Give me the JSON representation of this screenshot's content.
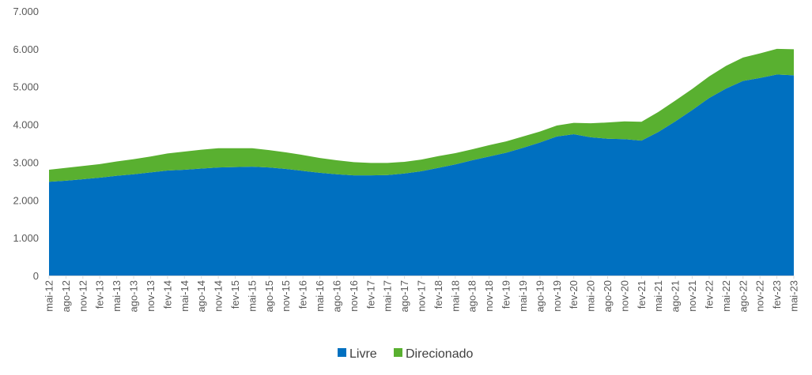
{
  "chart_data": {
    "type": "area",
    "stacked": true,
    "title": "",
    "xlabel": "",
    "ylabel": "",
    "ylim": [
      0,
      7000
    ],
    "yticks": [
      0,
      1000,
      2000,
      3000,
      4000,
      5000,
      6000,
      7000
    ],
    "ytick_labels": [
      "0",
      "1.000",
      "2.000",
      "3.000",
      "4.000",
      "5.000",
      "6.000",
      "7.000"
    ],
    "x": [
      "mai-12",
      "ago-12",
      "nov-12",
      "fev-13",
      "mai-13",
      "ago-13",
      "nov-13",
      "fev-14",
      "mai-14",
      "ago-14",
      "nov-14",
      "fev-15",
      "mai-15",
      "ago-15",
      "nov-15",
      "fev-16",
      "mai-16",
      "ago-16",
      "nov-16",
      "fev-17",
      "mai-17",
      "ago-17",
      "nov-17",
      "fev-18",
      "mai-18",
      "ago-18",
      "nov-18",
      "fev-19",
      "mai-19",
      "ago-19",
      "nov-19",
      "fev-20",
      "mai-20",
      "ago-20",
      "nov-20",
      "fev-21",
      "mai-21",
      "ago-21",
      "nov-21",
      "fev-22",
      "mai-22",
      "ago-22",
      "nov-22",
      "fev-23",
      "mai-23"
    ],
    "series": [
      {
        "name": "Livre",
        "color": "#0070c0",
        "values": [
          2480,
          2510,
          2550,
          2590,
          2640,
          2680,
          2730,
          2780,
          2800,
          2830,
          2860,
          2870,
          2880,
          2860,
          2820,
          2770,
          2720,
          2680,
          2650,
          2650,
          2660,
          2700,
          2760,
          2850,
          2940,
          3050,
          3150,
          3250,
          3380,
          3520,
          3680,
          3740,
          3660,
          3620,
          3610,
          3570,
          3800,
          4080,
          4380,
          4700,
          4950,
          5150,
          5230,
          5320,
          5300
        ]
      },
      {
        "name": "Direcionado",
        "color": "#59b030",
        "values": [
          320,
          340,
          350,
          360,
          380,
          400,
          420,
          450,
          480,
          500,
          510,
          500,
          490,
          460,
          440,
          420,
          390,
          370,
          350,
          330,
          320,
          310,
          310,
          310,
          300,
          290,
          300,
          300,
          300,
          290,
          290,
          300,
          370,
          430,
          470,
          500,
          530,
          550,
          560,
          570,
          600,
          620,
          650,
          680,
          690
        ]
      }
    ],
    "legend": [
      "Livre",
      "Direcionado"
    ],
    "legend_position": "bottom"
  }
}
